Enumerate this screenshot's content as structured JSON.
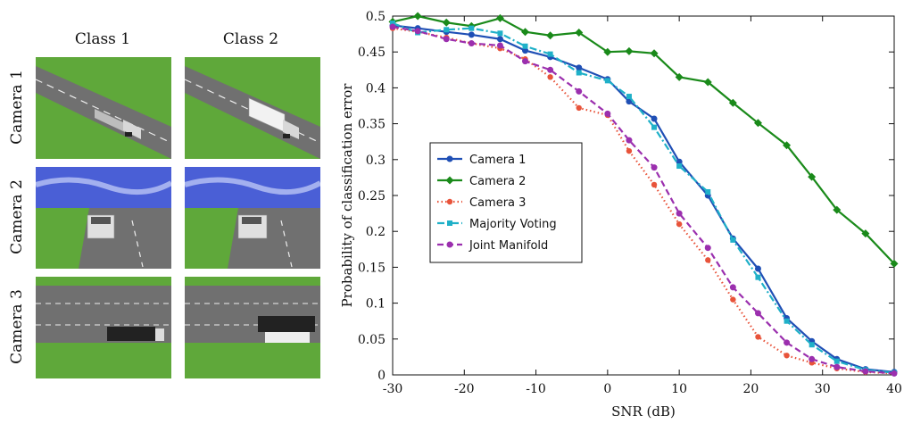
{
  "figure": {
    "columns": [
      "Class 1",
      "Class 2"
    ],
    "rows": [
      "Camera 1",
      "Camera 2",
      "Camera 3"
    ]
  },
  "chart_data": {
    "type": "line",
    "title": "",
    "xlabel": "SNR (dB)",
    "ylabel": "Probability of classification error",
    "xlim": [
      -30,
      40
    ],
    "ylim": [
      0,
      0.5
    ],
    "xticks": [
      -30,
      -20,
      -10,
      0,
      10,
      20,
      30,
      40
    ],
    "yticks": [
      0,
      0.05,
      0.1,
      0.15,
      0.2,
      0.25,
      0.3,
      0.35,
      0.4,
      0.45,
      0.5
    ],
    "legend_position": "center-left",
    "series": [
      {
        "name": "Camera 1",
        "color": "#1f4fb5",
        "line": "solid",
        "marker": "dot",
        "x": [
          -30,
          -26.5,
          -22.5,
          -19,
          -15,
          -11.5,
          -8,
          -4,
          0,
          3,
          6.5,
          10,
          14,
          17.5,
          21,
          25,
          28.5,
          32,
          36,
          40
        ],
        "y": [
          0.487,
          0.483,
          0.478,
          0.474,
          0.468,
          0.452,
          0.443,
          0.428,
          0.412,
          0.381,
          0.357,
          0.297,
          0.25,
          0.19,
          0.148,
          0.079,
          0.047,
          0.022,
          0.008,
          0.004
        ]
      },
      {
        "name": "Camera 2",
        "color": "#1a8a1a",
        "line": "solid",
        "marker": "diamond",
        "x": [
          -30,
          -26.5,
          -22.5,
          -19,
          -15,
          -11.5,
          -8,
          -4,
          0,
          3,
          6.5,
          10,
          14,
          17.5,
          21,
          25,
          28.5,
          32,
          36,
          40
        ],
        "y": [
          0.492,
          0.5,
          0.491,
          0.486,
          0.497,
          0.478,
          0.473,
          0.477,
          0.45,
          0.451,
          0.448,
          0.415,
          0.408,
          0.379,
          0.351,
          0.32,
          0.276,
          0.23,
          0.197,
          0.155
        ]
      },
      {
        "name": "Camera 3",
        "color": "#e8533a",
        "line": "dotted",
        "marker": "star",
        "x": [
          -30,
          -26.5,
          -22.5,
          -19,
          -15,
          -11.5,
          -8,
          -4,
          0,
          3,
          6.5,
          10,
          14,
          17.5,
          21,
          25,
          28.5,
          32,
          36,
          40
        ],
        "y": [
          0.483,
          0.478,
          0.47,
          0.462,
          0.455,
          0.44,
          0.415,
          0.372,
          0.362,
          0.312,
          0.265,
          0.21,
          0.16,
          0.105,
          0.053,
          0.027,
          0.017,
          0.009,
          0.004,
          0.002
        ]
      },
      {
        "name": "Majority Voting",
        "color": "#1fb0c8",
        "line": "dashdot",
        "marker": "square",
        "x": [
          -30,
          -26.5,
          -22.5,
          -19,
          -15,
          -11.5,
          -8,
          -4,
          0,
          3,
          6.5,
          10,
          14,
          17.5,
          21,
          25,
          28.5,
          32,
          36,
          40
        ],
        "y": [
          0.49,
          0.477,
          0.481,
          0.483,
          0.476,
          0.458,
          0.447,
          0.421,
          0.41,
          0.388,
          0.345,
          0.291,
          0.255,
          0.188,
          0.136,
          0.075,
          0.042,
          0.019,
          0.007,
          0.003
        ]
      },
      {
        "name": "Joint Manifold",
        "color": "#9b2fae",
        "line": "dashed",
        "marker": "dot",
        "x": [
          -30,
          -26.5,
          -22.5,
          -19,
          -15,
          -11.5,
          -8,
          -4,
          0,
          3,
          6.5,
          10,
          14,
          17.5,
          21,
          25,
          28.5,
          32,
          36,
          40
        ],
        "y": [
          0.485,
          0.479,
          0.468,
          0.462,
          0.459,
          0.437,
          0.425,
          0.395,
          0.364,
          0.327,
          0.289,
          0.225,
          0.177,
          0.122,
          0.086,
          0.045,
          0.022,
          0.011,
          0.005,
          0.002
        ]
      }
    ]
  }
}
